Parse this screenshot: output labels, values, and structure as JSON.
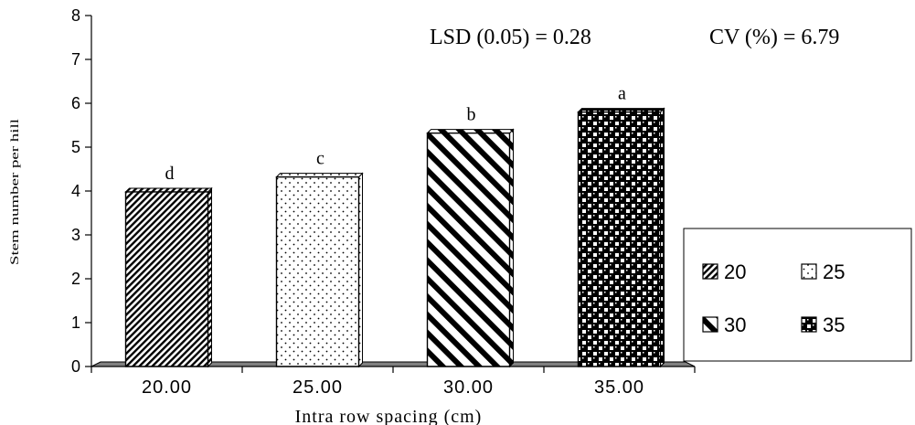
{
  "chart_data": {
    "type": "bar",
    "categories": [
      "20.00",
      "25.00",
      "30.00",
      "35.00"
    ],
    "values": [
      3.98,
      4.32,
      5.32,
      5.8
    ],
    "letters": [
      "d",
      "c",
      "b",
      "a"
    ],
    "xlabel": "Intra row spacing (cm)",
    "ylabel": "Stem number per hill",
    "ylim": [
      0,
      8
    ],
    "yticks": [
      "0",
      "1",
      "2",
      "3",
      "4",
      "5",
      "6",
      "7",
      "8"
    ],
    "grid": false,
    "annotations": {
      "lsd": "LSD (0.05) = 0.28",
      "cv": "CV (%) = 6.79"
    },
    "legend": {
      "placement": "right",
      "entries": [
        "20",
        "25",
        "30",
        "35"
      ]
    }
  }
}
